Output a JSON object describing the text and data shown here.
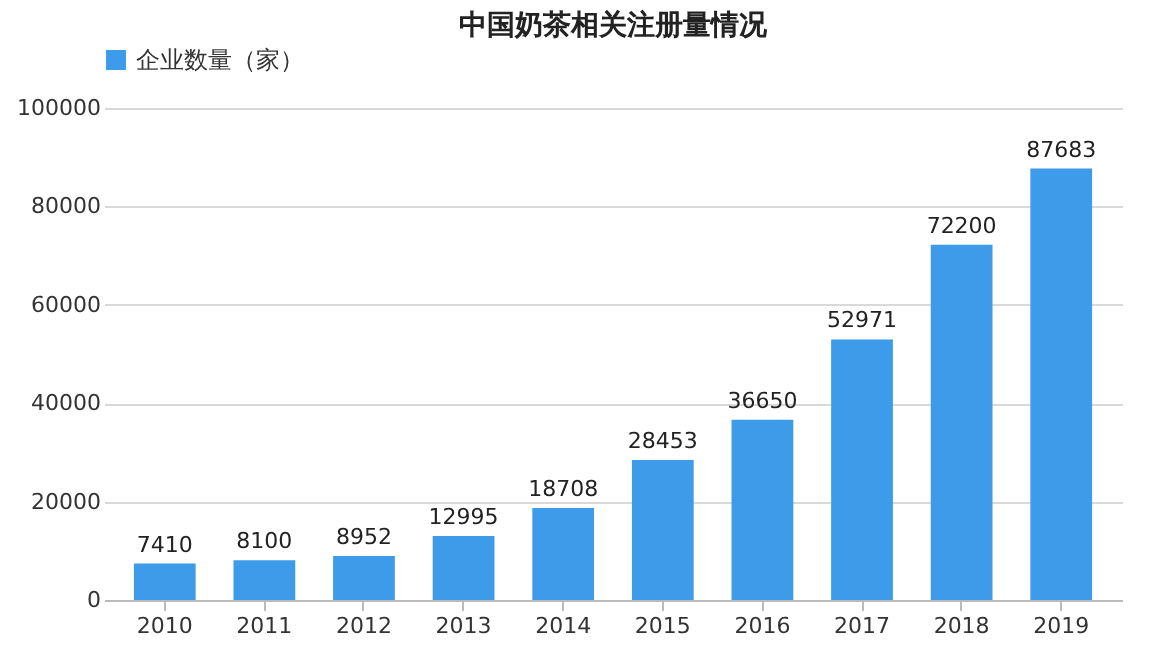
{
  "chart_data": {
    "type": "bar",
    "title": "中国奶茶相关注册量情况",
    "categories": [
      "2010",
      "2011",
      "2012",
      "2013",
      "2014",
      "2015",
      "2016",
      "2017",
      "2018",
      "2019"
    ],
    "series": [
      {
        "name": "企业数量（家）",
        "color": "#3d9be9",
        "values": [
          7410,
          8100,
          8952,
          12995,
          18708,
          28453,
          36650,
          52971,
          72200,
          87683
        ]
      }
    ],
    "ylim": [
      0,
      100000
    ],
    "yticks": [
      0,
      20000,
      40000,
      60000,
      80000,
      100000
    ],
    "grid": "y",
    "legend": "top",
    "data_labels": true
  }
}
